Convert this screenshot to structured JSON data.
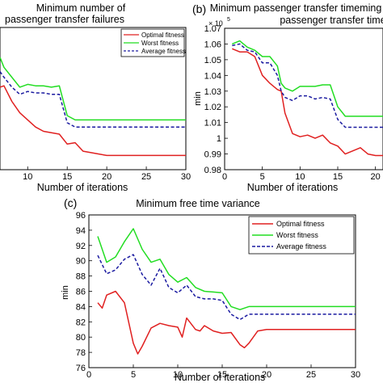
{
  "chart_data": [
    {
      "panel_label": "",
      "type": "line",
      "title_lines": [
        "Minimum number of",
        "passenger transfer failures"
      ],
      "xlabel": "Number of iterations",
      "ylabel": "",
      "xlim": [
        6.5,
        30
      ],
      "ylim": [
        0,
        10
      ],
      "x_ticks": [
        "10",
        "15",
        "20",
        "25",
        "30"
      ],
      "y_ticks": [],
      "grid": false,
      "legend_position": "top-right",
      "series": [
        {
          "name": "Optimal fitness",
          "color": "#e02020",
          "dash": "solid",
          "x": [
            6.5,
            7,
            8,
            9,
            10,
            11,
            12,
            13,
            14,
            15,
            16,
            17,
            18,
            19,
            20,
            21,
            22,
            23,
            24,
            25,
            26,
            27,
            28,
            29,
            30
          ],
          "y": [
            5.8,
            5.9,
            4.8,
            4.0,
            3.5,
            3.0,
            2.7,
            2.6,
            2.5,
            1.8,
            1.9,
            1.3,
            1.2,
            1.1,
            1.0,
            1.0,
            1.0,
            1.0,
            1.0,
            1.0,
            1.0,
            1.0,
            1.0,
            1.0,
            1.0
          ]
        },
        {
          "name": "Worst fitness",
          "color": "#22dd22",
          "dash": "solid",
          "x": [
            6.5,
            7,
            8,
            9,
            10,
            11,
            12,
            13,
            14,
            15,
            16,
            17,
            18,
            19,
            20,
            21,
            22,
            23,
            24,
            25,
            26,
            27,
            28,
            29,
            30
          ],
          "y": [
            7.9,
            7.2,
            6.5,
            5.8,
            6.0,
            5.9,
            5.9,
            5.8,
            5.9,
            3.8,
            3.5,
            3.5,
            3.5,
            3.5,
            3.5,
            3.5,
            3.5,
            3.5,
            3.5,
            3.5,
            3.5,
            3.5,
            3.5,
            3.5,
            3.5
          ]
        },
        {
          "name": "Average fitness",
          "color": "#1a1aa0",
          "dash": "dashed",
          "x": [
            6.5,
            7,
            8,
            9,
            10,
            11,
            12,
            13,
            14,
            15,
            16,
            17,
            18,
            19,
            20,
            21,
            22,
            23,
            24,
            25,
            26,
            27,
            28,
            29,
            30
          ],
          "y": [
            6.9,
            6.5,
            5.8,
            5.3,
            5.5,
            5.4,
            5.4,
            5.3,
            5.3,
            3.3,
            3.0,
            3.0,
            3.0,
            3.0,
            3.0,
            3.0,
            3.0,
            3.0,
            3.0,
            3.0,
            3.0,
            3.0,
            3.0,
            3.0,
            3.0
          ]
        }
      ]
    },
    {
      "panel_label": "(b)",
      "type": "line",
      "title_lines": [
        "Minimum passenger transfer timeming",
        "passenger transfer time"
      ],
      "xlabel": "Number of iterations",
      "ylabel": "min",
      "exponent_label": "× 10",
      "exponent_power": "5",
      "xlim": [
        0,
        21
      ],
      "ylim": [
        0.98,
        1.07
      ],
      "x_ticks": [
        "0",
        "5",
        "10",
        "15",
        "20"
      ],
      "y_ticks": [
        "0.98",
        "0.99",
        "1",
        "1.01",
        "1.02",
        "1.03",
        "1.04",
        "1.05",
        "1.06",
        "1.07"
      ],
      "grid": false,
      "series": [
        {
          "name": "Optimal fitness",
          "color": "#e02020",
          "dash": "solid",
          "x": [
            1,
            2,
            3,
            4,
            5,
            6,
            7,
            7.5,
            8,
            9,
            10,
            11,
            12,
            13,
            14,
            15,
            16,
            17,
            18,
            19,
            20,
            21
          ],
          "y": [
            1.057,
            1.055,
            1.055,
            1.052,
            1.04,
            1.035,
            1.031,
            1.03,
            1.016,
            1.003,
            1.001,
            1.002,
            1.0,
            1.002,
            0.997,
            0.995,
            0.99,
            0.992,
            0.994,
            0.99,
            0.989,
            0.989
          ]
        },
        {
          "name": "Worst fitness",
          "color": "#22dd22",
          "dash": "solid",
          "x": [
            1,
            2,
            3,
            4,
            5,
            6,
            7,
            7.5,
            8,
            9,
            10,
            11,
            12,
            13,
            14,
            15,
            16,
            17,
            18,
            19,
            20,
            21
          ],
          "y": [
            1.06,
            1.062,
            1.058,
            1.056,
            1.052,
            1.052,
            1.046,
            1.035,
            1.032,
            1.03,
            1.033,
            1.033,
            1.033,
            1.034,
            1.034,
            1.02,
            1.014,
            1.014,
            1.014,
            1.014,
            1.014,
            1.014
          ]
        },
        {
          "name": "Average fitness",
          "color": "#1a1aa0",
          "dash": "dashed",
          "x": [
            1,
            2,
            3,
            4,
            5,
            6,
            7,
            7.5,
            8,
            9,
            10,
            11,
            12,
            13,
            14,
            15,
            16,
            17,
            18,
            19,
            20,
            21
          ],
          "y": [
            1.059,
            1.06,
            1.056,
            1.055,
            1.048,
            1.048,
            1.04,
            1.03,
            1.026,
            1.024,
            1.027,
            1.027,
            1.025,
            1.026,
            1.025,
            1.012,
            1.007,
            1.007,
            1.007,
            1.007,
            1.007,
            1.007
          ]
        }
      ]
    },
    {
      "panel_label": "(c)",
      "type": "line",
      "title": "Minimum free time variance",
      "xlabel": "Number of iterations",
      "ylabel": "min",
      "xlim": [
        0,
        30
      ],
      "ylim": [
        76,
        96
      ],
      "x_ticks": [
        "0",
        "5",
        "10",
        "15",
        "20",
        "25",
        "30"
      ],
      "y_ticks": [
        "76",
        "78",
        "80",
        "82",
        "84",
        "86",
        "88",
        "90",
        "92",
        "94",
        "96"
      ],
      "grid": false,
      "legend_position": "top-right",
      "series": [
        {
          "name": "Optimal fitness",
          "color": "#e02020",
          "dash": "solid",
          "x": [
            1,
            1.5,
            2,
            3,
            4,
            5,
            5.5,
            6,
            7,
            8,
            9,
            10,
            10.5,
            11,
            12,
            12.5,
            13,
            14,
            15,
            16,
            17,
            17.5,
            18,
            19,
            20,
            22,
            24,
            26,
            28,
            30
          ],
          "y": [
            84.5,
            83.8,
            85.5,
            86.0,
            84.5,
            79.2,
            77.8,
            78.8,
            81.2,
            81.8,
            81.5,
            81.3,
            80.0,
            82.5,
            81.0,
            80.8,
            81.5,
            80.8,
            80.5,
            80.6,
            79.0,
            78.6,
            79.2,
            80.8,
            81.0,
            81.0,
            81.0,
            81.0,
            81.0,
            81.0
          ]
        },
        {
          "name": "Worst fitness",
          "color": "#22dd22",
          "dash": "solid",
          "x": [
            1,
            2,
            3,
            4,
            5,
            6,
            7,
            8,
            9,
            10,
            11,
            12,
            13,
            14,
            15,
            16,
            17,
            18,
            20,
            22,
            24,
            26,
            28,
            30
          ],
          "y": [
            93.2,
            89.8,
            90.5,
            92.5,
            94.2,
            91.5,
            89.8,
            90.2,
            88.2,
            87.2,
            87.8,
            86.5,
            86.0,
            85.9,
            85.8,
            84.0,
            83.6,
            84.0,
            84.0,
            84.0,
            84.0,
            84.0,
            84.0,
            84.0
          ]
        },
        {
          "name": "Average fitness",
          "color": "#1a1aa0",
          "dash": "dashed",
          "x": [
            1,
            2,
            3,
            4,
            5,
            6,
            7,
            8,
            9,
            10,
            11,
            12,
            13,
            14,
            15,
            16,
            17,
            18,
            20,
            22,
            24,
            26,
            28,
            30
          ],
          "y": [
            90.7,
            88.3,
            88.8,
            90.2,
            90.8,
            88.2,
            86.8,
            89.0,
            86.5,
            85.8,
            86.8,
            85.3,
            85.0,
            85.0,
            84.8,
            83.0,
            82.3,
            83.0,
            83.0,
            83.0,
            83.0,
            83.0,
            83.0,
            83.0
          ]
        }
      ]
    }
  ]
}
